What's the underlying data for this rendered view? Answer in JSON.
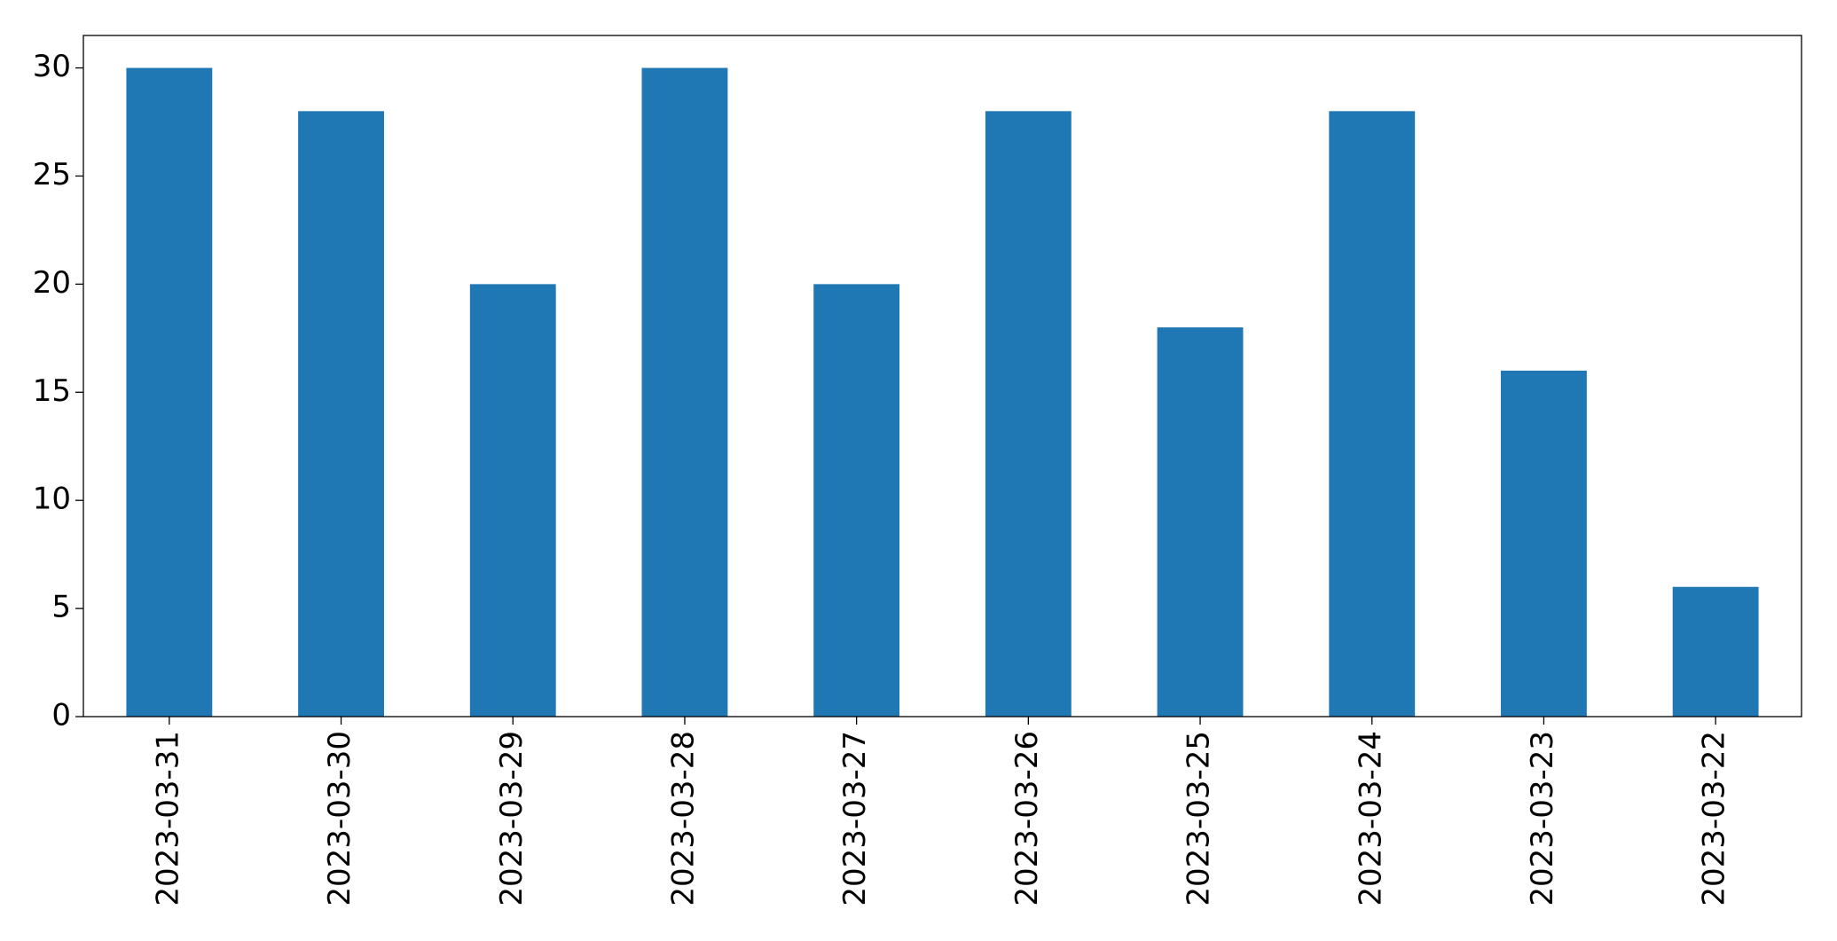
{
  "chart_data": {
    "type": "bar",
    "categories": [
      "2023-03-31",
      "2023-03-30",
      "2023-03-29",
      "2023-03-28",
      "2023-03-27",
      "2023-03-26",
      "2023-03-25",
      "2023-03-24",
      "2023-03-23",
      "2023-03-22"
    ],
    "values": [
      30,
      28,
      20,
      30,
      20,
      28,
      18,
      28,
      16,
      6
    ],
    "color": "#1f77b4",
    "ylim": [
      0,
      31.5
    ],
    "yticks": [
      0,
      5,
      10,
      15,
      20,
      25,
      30
    ],
    "grid": false
  }
}
